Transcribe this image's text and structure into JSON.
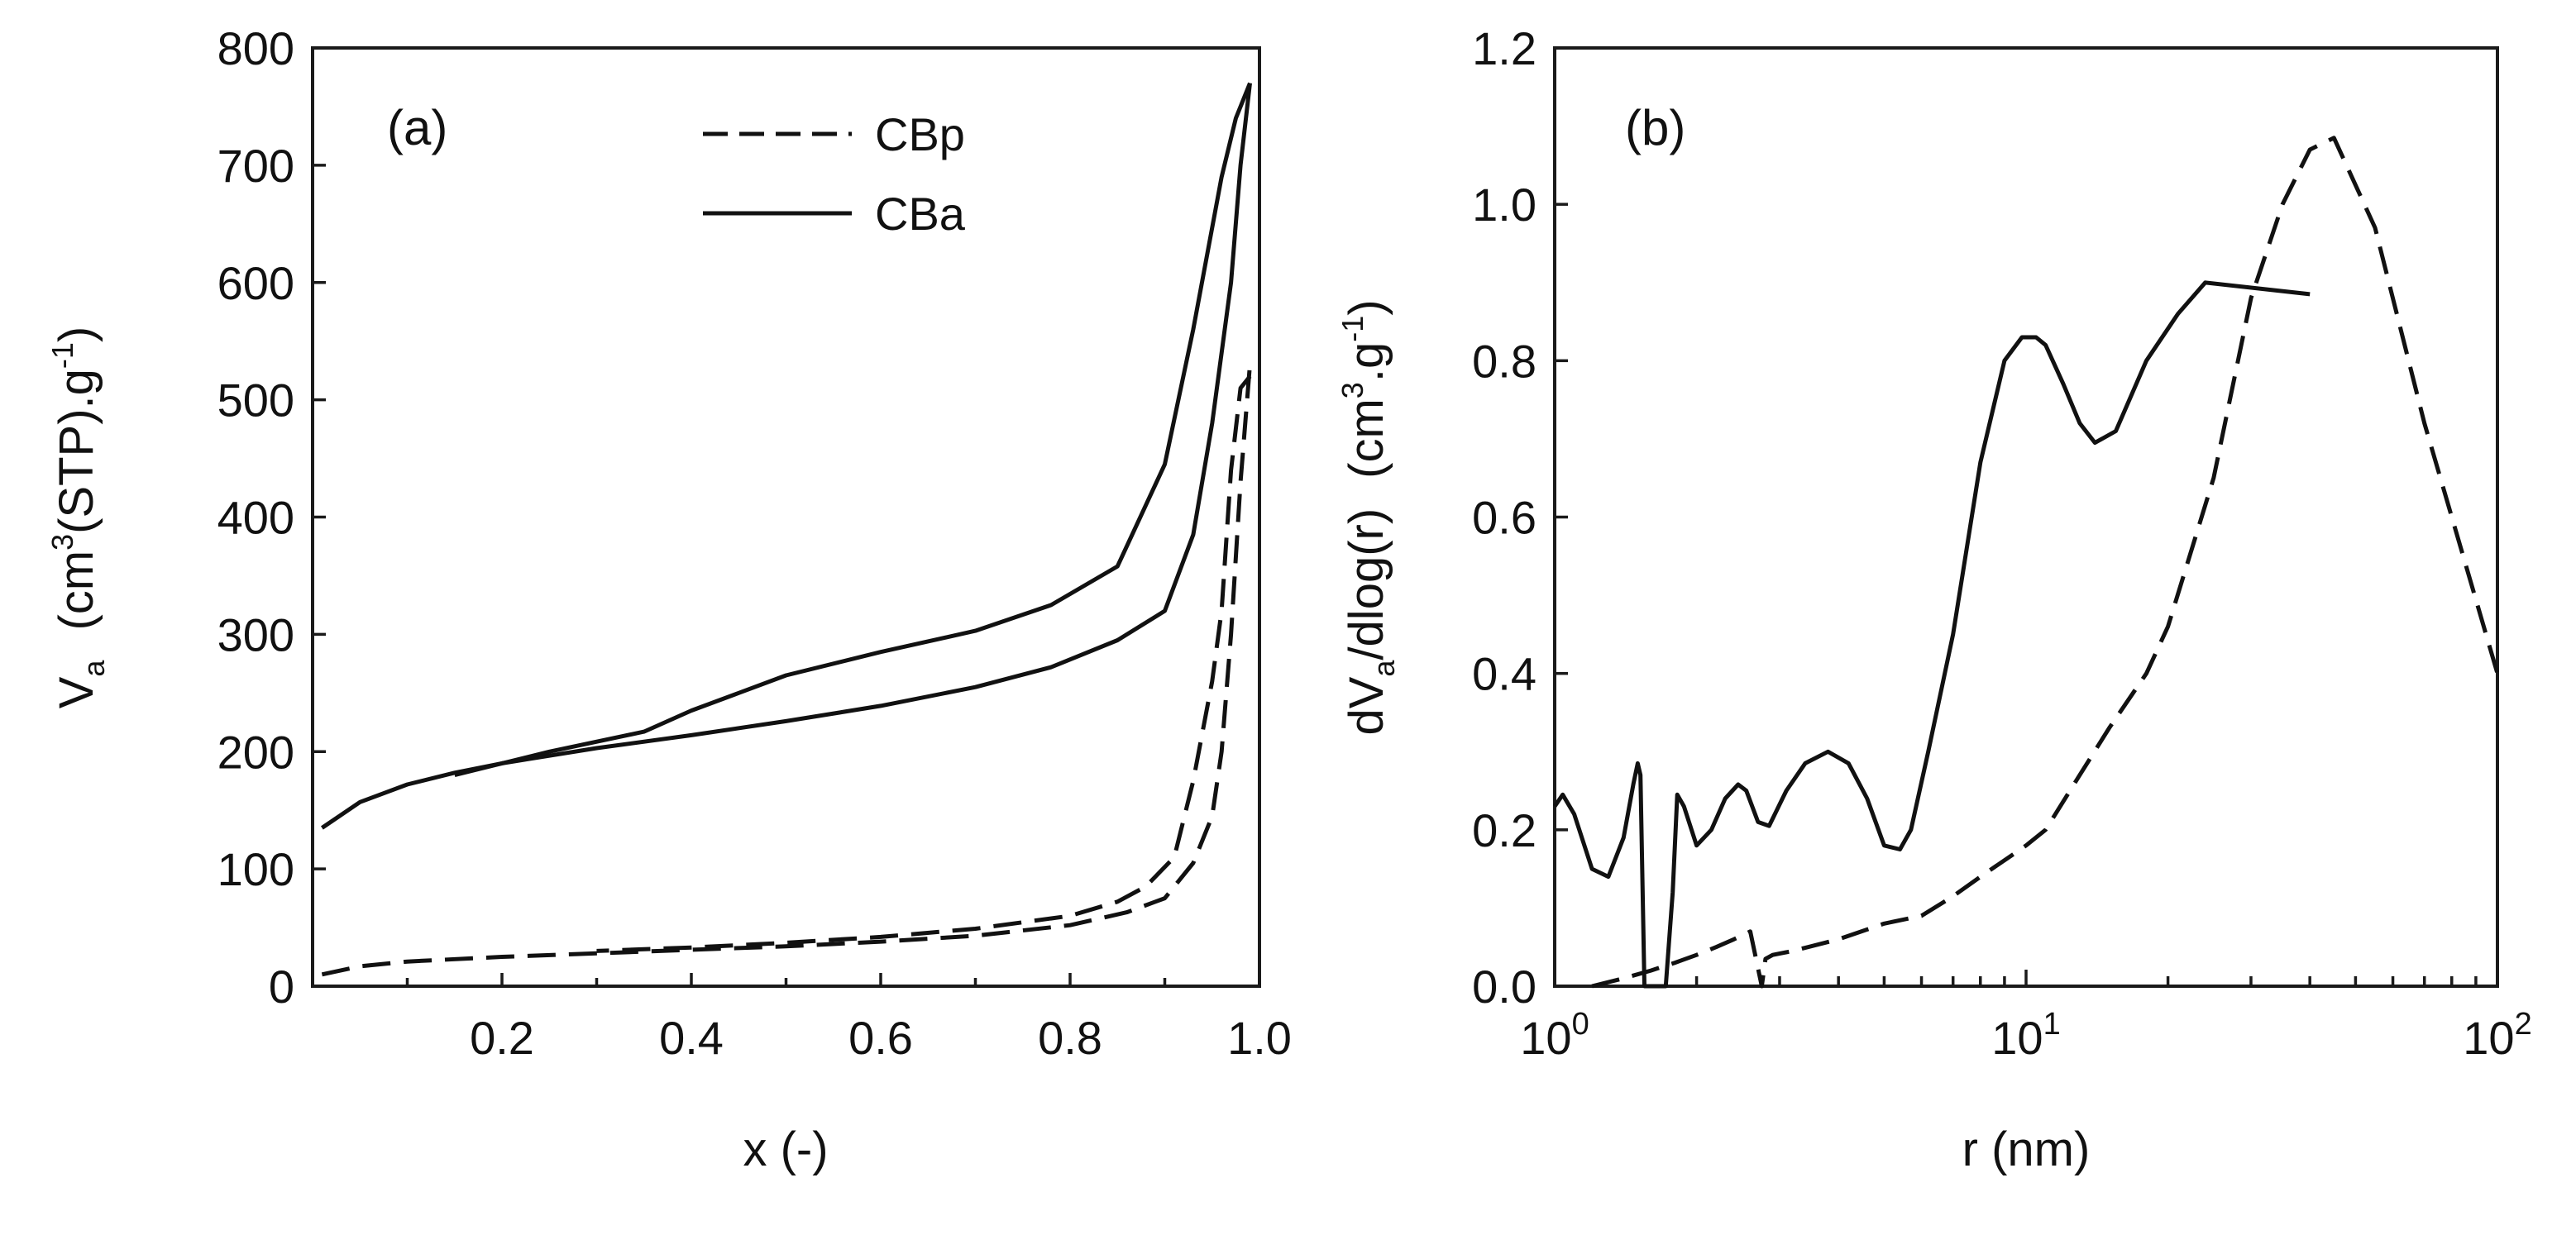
{
  "chart_data": [
    {
      "panel": "(a)",
      "type": "line",
      "xlabel": "x (-)",
      "ylabel": {
        "main": "V",
        "sub": "a",
        "unit_open": "(cm",
        "unit_sup": "3",
        "unit_mid": "(STP).g",
        "unit_sup2": "-1",
        "unit_close": ")"
      },
      "xlim": [
        0.0,
        1.0
      ],
      "ylim": [
        0,
        800
      ],
      "xticks": [
        0.2,
        0.4,
        0.6,
        0.8,
        1.0
      ],
      "xtick_labels": [
        "0.2",
        "0.4",
        "0.6",
        "0.8",
        "1.0"
      ],
      "yticks": [
        0,
        100,
        200,
        300,
        400,
        500,
        600,
        700,
        800
      ],
      "ytick_labels": [
        "0",
        "100",
        "200",
        "300",
        "400",
        "500",
        "600",
        "700",
        "800"
      ],
      "legend": {
        "position": "top-center",
        "entries": [
          {
            "label": "CBp",
            "style": "dashed"
          },
          {
            "label": "CBa",
            "style": "solid"
          }
        ]
      },
      "series": [
        {
          "name": "CBa",
          "branch": "adsorption",
          "style": "solid",
          "x": [
            0.01,
            0.05,
            0.1,
            0.15,
            0.2,
            0.3,
            0.4,
            0.5,
            0.6,
            0.7,
            0.78,
            0.85,
            0.9,
            0.93,
            0.95,
            0.97,
            0.98,
            0.99
          ],
          "y": [
            135,
            157,
            172,
            182,
            190,
            203,
            214,
            226,
            239,
            255,
            272,
            295,
            320,
            385,
            480,
            600,
            700,
            770
          ]
        },
        {
          "name": "CBa",
          "branch": "desorption",
          "style": "solid",
          "x": [
            0.99,
            0.975,
            0.96,
            0.93,
            0.9,
            0.85,
            0.78,
            0.7,
            0.6,
            0.5,
            0.45,
            0.4,
            0.35,
            0.25,
            0.15
          ],
          "y": [
            770,
            740,
            690,
            560,
            445,
            358,
            325,
            303,
            285,
            265,
            250,
            235,
            217,
            200,
            180
          ]
        },
        {
          "name": "CBp",
          "branch": "adsorption",
          "style": "dashed",
          "x": [
            0.01,
            0.05,
            0.1,
            0.2,
            0.3,
            0.4,
            0.5,
            0.6,
            0.7,
            0.8,
            0.86,
            0.9,
            0.93,
            0.95,
            0.96,
            0.97,
            0.98,
            0.99
          ],
          "y": [
            10,
            17,
            21,
            25,
            28,
            31,
            34,
            38,
            43,
            52,
            63,
            75,
            105,
            145,
            200,
            300,
            430,
            530
          ]
        },
        {
          "name": "CBp",
          "branch": "desorption",
          "style": "dashed",
          "x": [
            0.99,
            0.98,
            0.97,
            0.96,
            0.95,
            0.93,
            0.91,
            0.88,
            0.85,
            0.8,
            0.7,
            0.6,
            0.5,
            0.4,
            0.3
          ],
          "y": [
            520,
            510,
            440,
            320,
            260,
            175,
            110,
            85,
            72,
            60,
            49,
            42,
            37,
            33,
            30
          ]
        }
      ]
    },
    {
      "panel": "(b)",
      "type": "line",
      "xscale": "log",
      "xlabel": "r (nm)",
      "ylabel": {
        "main": "dV",
        "sub": "a",
        "rest": "/dlog(r)",
        "unit_open": "(cm",
        "unit_sup": "3",
        "unit_mid": ".g",
        "unit_sup2": "-1",
        "unit_close": ")"
      },
      "xlim": [
        1,
        100
      ],
      "ylim": [
        0.0,
        1.2
      ],
      "xticks": [
        1,
        10,
        100
      ],
      "xtick_labels": [
        {
          "base": "10",
          "exp": "0"
        },
        {
          "base": "10",
          "exp": "1"
        },
        {
          "base": "10",
          "exp": "2"
        }
      ],
      "yticks": [
        0.0,
        0.2,
        0.4,
        0.6,
        0.8,
        1.0,
        1.2
      ],
      "ytick_labels": [
        "0.0",
        "0.2",
        "0.4",
        "0.6",
        "0.8",
        "1.0",
        "1.2"
      ],
      "series": [
        {
          "name": "CBa",
          "style": "solid",
          "x": [
            1.0,
            1.04,
            1.1,
            1.2,
            1.3,
            1.4,
            1.47,
            1.5,
            1.52,
            1.55,
            1.6,
            1.66,
            1.72,
            1.78,
            1.82,
            1.88,
            2.0,
            2.15,
            2.3,
            2.45,
            2.55,
            2.7,
            2.85,
            3.1,
            3.4,
            3.8,
            4.2,
            4.6,
            5.0,
            5.4,
            5.7,
            6.2,
            7.0,
            8.0,
            9.0,
            9.8,
            10.5,
            11.0,
            12.0,
            13.0,
            14.0,
            15.5,
            18.0,
            21.0,
            24.0,
            40.0
          ],
          "y": [
            0.23,
            0.245,
            0.22,
            0.15,
            0.14,
            0.19,
            0.26,
            0.285,
            0.27,
            0.0,
            0.0,
            0.0,
            0.0,
            0.12,
            0.245,
            0.23,
            0.18,
            0.2,
            0.24,
            0.258,
            0.25,
            0.21,
            0.205,
            0.25,
            0.285,
            0.3,
            0.285,
            0.24,
            0.18,
            0.175,
            0.2,
            0.3,
            0.45,
            0.67,
            0.8,
            0.83,
            0.83,
            0.82,
            0.77,
            0.72,
            0.695,
            0.71,
            0.8,
            0.86,
            0.9,
            0.885
          ]
        },
        {
          "name": "CBp",
          "style": "dashed",
          "x": [
            1.2,
            1.4,
            1.6,
            1.8,
            2.0,
            2.2,
            2.4,
            2.6,
            2.75,
            2.8,
            2.9,
            3.2,
            4.0,
            5.0,
            6.0,
            7.0,
            8.0,
            10.0,
            11.0,
            13.0,
            15.0,
            18.0,
            20.0,
            25.0,
            30.0,
            35.0,
            40.0,
            45.0,
            55.0,
            70.0,
            100.0
          ],
          "y": [
            0.0,
            0.01,
            0.02,
            0.03,
            0.04,
            0.05,
            0.06,
            0.07,
            0.0,
            0.035,
            0.04,
            0.045,
            0.06,
            0.08,
            0.09,
            0.115,
            0.14,
            0.18,
            0.2,
            0.27,
            0.33,
            0.4,
            0.46,
            0.65,
            0.88,
            1.0,
            1.07,
            1.085,
            0.97,
            0.72,
            0.4
          ]
        }
      ]
    }
  ]
}
